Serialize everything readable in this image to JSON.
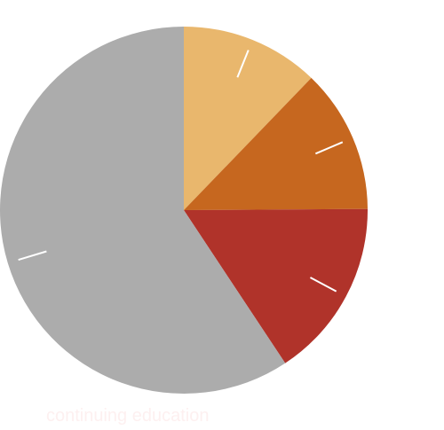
{
  "chart_data": {
    "type": "pie",
    "start_angle_deg": 0,
    "direction": "clockwise",
    "slices": [
      {
        "value": 12.2,
        "color": "#e9b76d"
      },
      {
        "value": 12.7,
        "color": "#c6671f"
      },
      {
        "value": 15.8,
        "color": "#b0332a"
      },
      {
        "value": 59.3,
        "color": "#acacac"
      }
    ],
    "inner_label": "continuing education"
  }
}
